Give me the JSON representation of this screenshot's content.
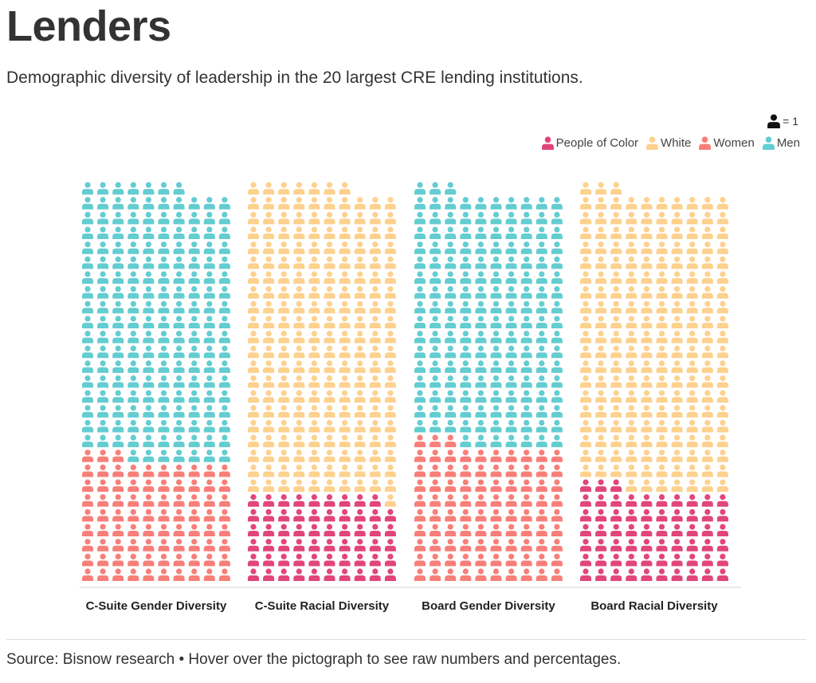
{
  "title": "Lenders",
  "subtitle": "Demographic diversity of leadership in the 20 largest CRE lending institutions.",
  "unit_legend": "= 1",
  "source": "Source: Bisnow research • Hover over the pictograph to see raw numbers and percentages.",
  "colors": {
    "People of Color": "#e2457b",
    "White": "#fdd18e",
    "Women": "#f87f79",
    "Men": "#63cdd1",
    "unit": "#111111"
  },
  "chart_data": {
    "type": "pictograph",
    "icon": "person-icon",
    "units_per_icon": 1,
    "columns_per_group": 10,
    "legend": [
      "People of Color",
      "White",
      "Women",
      "Men"
    ],
    "legend_placement": "top-right",
    "groups": [
      {
        "label": "C-Suite Gender Diversity",
        "segments": [
          {
            "name": "Women",
            "value": 83
          },
          {
            "name": "Men",
            "value": 184
          }
        ]
      },
      {
        "label": "C-Suite Racial Diversity",
        "segments": [
          {
            "name": "People of Color",
            "value": 59
          },
          {
            "name": "White",
            "value": 208
          }
        ]
      },
      {
        "label": "Board Gender Diversity",
        "segments": [
          {
            "name": "Women",
            "value": 93
          },
          {
            "name": "Men",
            "value": 170
          }
        ]
      },
      {
        "label": "Board Racial Diversity",
        "segments": [
          {
            "name": "People of Color",
            "value": 63
          },
          {
            "name": "White",
            "value": 200
          }
        ]
      }
    ]
  }
}
